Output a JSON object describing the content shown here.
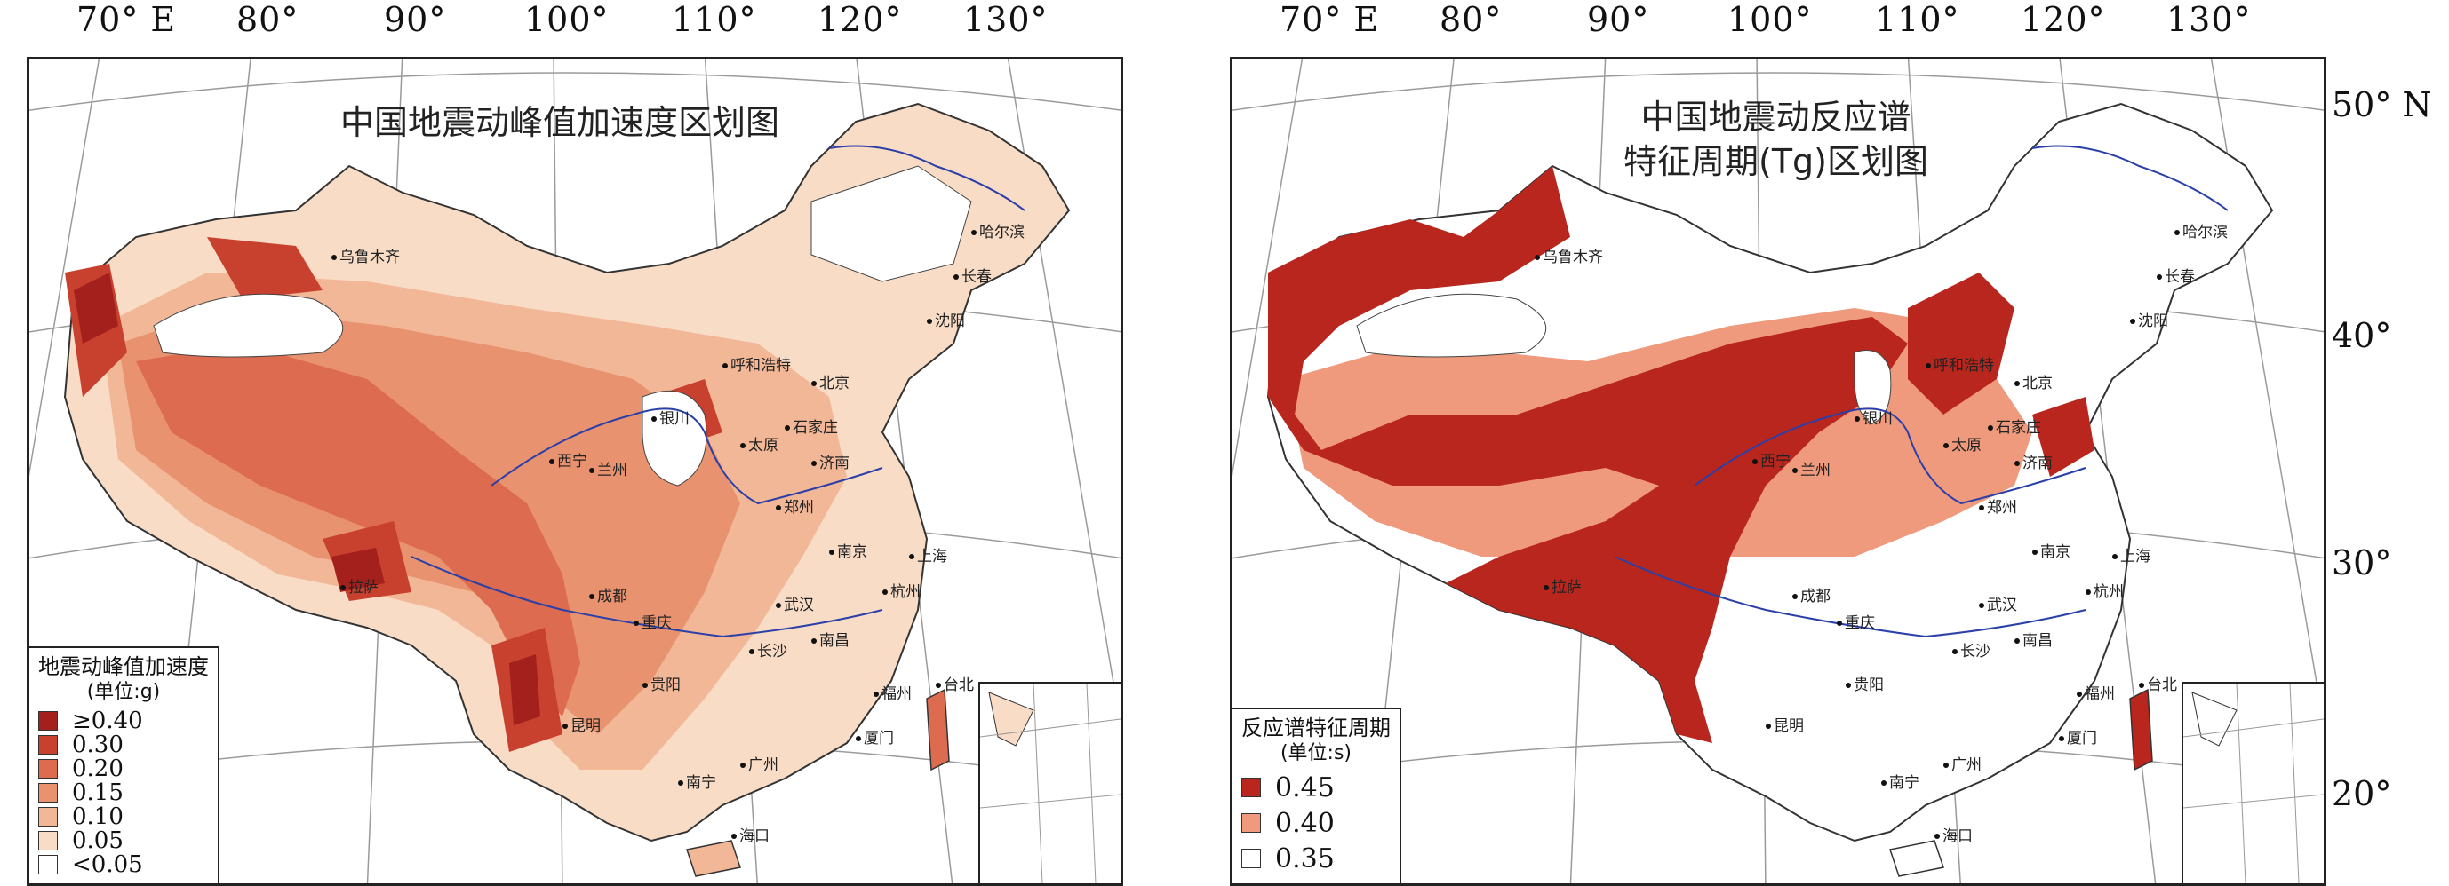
{
  "longitude_labels": [
    "70° E",
    "80°",
    "90°",
    "100°",
    "110°",
    "120°",
    "130°"
  ],
  "latitude_labels": [
    "50° N",
    "40°",
    "30°",
    "20°"
  ],
  "left_map": {
    "title": "中国地震动峰值加速度区划图",
    "legend": {
      "title": "地震动峰值加速度",
      "unit": "(单位:g)",
      "items": [
        {
          "label": "≥0.40",
          "color": "#a3201c"
        },
        {
          "label": "0.30",
          "color": "#c8402e"
        },
        {
          "label": "0.20",
          "color": "#dc6b4f"
        },
        {
          "label": "0.15",
          "color": "#e8926f"
        },
        {
          "label": "0.10",
          "color": "#f2b796"
        },
        {
          "label": "0.05",
          "color": "#f9dcc6"
        },
        {
          "label": "<0.05",
          "color": "#ffffff"
        }
      ]
    },
    "cities": [
      "乌鲁木齐",
      "拉萨",
      "兰州",
      "银川",
      "西宁",
      "成都",
      "重庆",
      "昆明",
      "贵阳",
      "南宁",
      "广州",
      "海口",
      "长沙",
      "武汉",
      "南昌",
      "南京",
      "上海",
      "杭州",
      "郑州",
      "济南",
      "石家庄",
      "北京",
      "呼和浩特",
      "太原",
      "沈阳",
      "长春",
      "哈尔滨",
      "福州",
      "厦门",
      "台北"
    ]
  },
  "right_map": {
    "title_line1": "中国地震动反应谱",
    "title_line2": "特征周期(Tg)区划图",
    "legend": {
      "title": "反应谱特征周期",
      "unit": "(单位:s)",
      "items": [
        {
          "label": "0.45",
          "color": "#b8261e"
        },
        {
          "label": "0.40",
          "color": "#ef9a7c"
        },
        {
          "label": "0.35",
          "color": "#ffffff"
        }
      ]
    }
  }
}
